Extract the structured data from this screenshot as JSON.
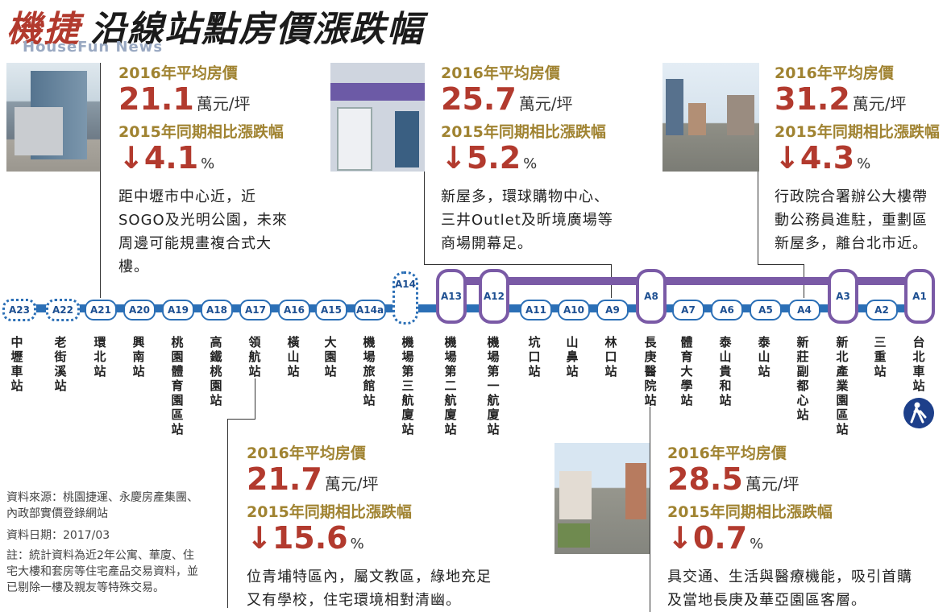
{
  "title": {
    "brand": "機捷",
    "text": "沿線站點房價漲跌幅"
  },
  "watermark": "HouseFun News",
  "labels": {
    "avg": "2016年平均房價",
    "change": "2015年同期相比漲跌幅",
    "unit": "萬元/坪",
    "pct": "%"
  },
  "blocks": {
    "a21": {
      "price": "21.1",
      "change": "↓4.1",
      "desc": "距中壢市中心近，近SOGO及光明公園，未來周邊可能規畫複合式大樓。"
    },
    "a9": {
      "price": "25.7",
      "change": "↓5.2",
      "desc": "新屋多，環球購物中心、三井Outlet及昕境廣場等商場開幕足。"
    },
    "a4": {
      "price": "31.2",
      "change": "↓4.3",
      "desc": "行政院合署辦公大樓帶動公務員進駐，重劃區新屋多，離台北市近。"
    },
    "a17": {
      "price": "21.7",
      "change": "↓15.6",
      "desc": "位青埔特區內，屬文教區，綠地充足又有學校，住宅環境相對清幽。"
    },
    "a8": {
      "price": "28.5",
      "change": "↓0.7",
      "desc": "具交通、生活與醫療機能，吸引首購及當地長庚及華亞園區客層。"
    }
  },
  "stations": [
    {
      "code": "A23",
      "name": "中壢車站"
    },
    {
      "code": "A22",
      "name": "老街溪站"
    },
    {
      "code": "A21",
      "name": "環北站"
    },
    {
      "code": "A20",
      "name": "興南站"
    },
    {
      "code": "A19",
      "name": "桃園體育園區站"
    },
    {
      "code": "A18",
      "name": "高鐵桃園站"
    },
    {
      "code": "A17",
      "name": "領航站"
    },
    {
      "code": "A16",
      "name": "橫山站"
    },
    {
      "code": "A15",
      "name": "大園站"
    },
    {
      "code": "A14a",
      "name": "機場旅館站"
    },
    {
      "code": "A14",
      "name": "機場第三航廈站"
    },
    {
      "code": "A13",
      "name": "機場第二航廈站"
    },
    {
      "code": "A12",
      "name": "機場第一航廈站"
    },
    {
      "code": "A11",
      "name": "坑口站"
    },
    {
      "code": "A10",
      "name": "山鼻站"
    },
    {
      "code": "A9",
      "name": "林口站"
    },
    {
      "code": "A8",
      "name": "長庚醫院站"
    },
    {
      "code": "A7",
      "name": "體育大學站"
    },
    {
      "code": "A6",
      "name": "泰山貴和站"
    },
    {
      "code": "A5",
      "name": "泰山站"
    },
    {
      "code": "A4",
      "name": "新莊副都心站"
    },
    {
      "code": "A3",
      "name": "新北產業園區站"
    },
    {
      "code": "A2",
      "name": "三重站"
    },
    {
      "code": "A1",
      "name": "台北車站"
    }
  ],
  "source": {
    "s1": "資料來源：桃園捷運、永慶房產集團、內政部實價登錄網站",
    "s2": "資料日期：2017/03",
    "s3": "註：統計資料為近2年公寓、華廈、住宅大樓和套房等住宅產品交易資料，並已剔除一樓及親友等特殊交易。"
  },
  "colors": {
    "brand": "#b23a2e",
    "gold": "#a08331",
    "line_blue": "#2b6fb6",
    "line_purple": "#7a5aa6"
  }
}
